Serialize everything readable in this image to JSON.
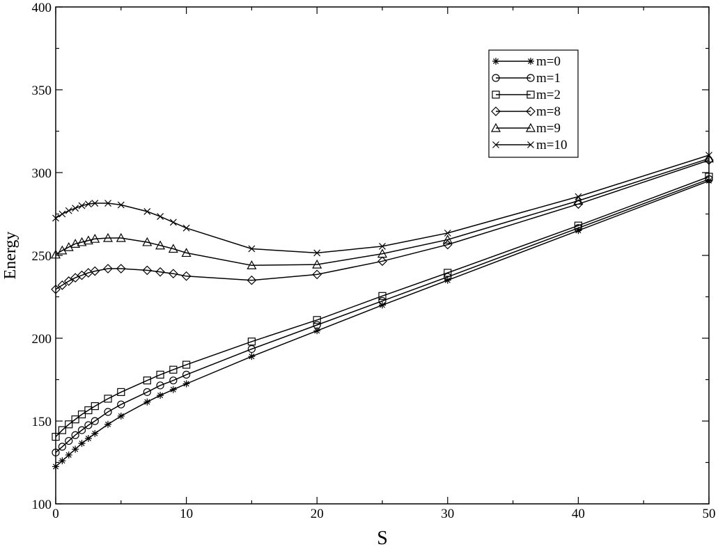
{
  "chart_data": {
    "type": "line",
    "title": "",
    "xlabel": "S",
    "ylabel": "Energy",
    "xlim": [
      0,
      50
    ],
    "ylim": [
      100,
      400
    ],
    "x_ticks": [
      0,
      10,
      20,
      30,
      40,
      50
    ],
    "y_ticks": [
      100,
      150,
      200,
      250,
      300,
      350,
      400
    ],
    "x_tick_labels": [
      "0",
      "10",
      "20",
      "30",
      "40",
      "50"
    ],
    "y_tick_labels": [
      "100",
      "150",
      "200",
      "250",
      "300",
      "350",
      "400"
    ],
    "grid": false,
    "legend_position": "top-right",
    "series": [
      {
        "name": "m=0",
        "marker": "star",
        "x": [
          0,
          0.5,
          1,
          1.5,
          2,
          2.5,
          3,
          4,
          5,
          7,
          8,
          9,
          10,
          15,
          20,
          25,
          30,
          40,
          50
        ],
        "y": [
          122.5,
          126,
          129.5,
          133,
          136.5,
          139.5,
          142.5,
          148,
          153,
          161.5,
          165.5,
          169,
          172.5,
          189,
          204.5,
          220,
          235,
          265,
          295
        ]
      },
      {
        "name": "m=1",
        "marker": "circle",
        "x": [
          0,
          0.5,
          1,
          1.5,
          2,
          2.5,
          3,
          4,
          5,
          7,
          8,
          9,
          10,
          15,
          20,
          25,
          30,
          40,
          50
        ],
        "y": [
          131,
          134.5,
          138,
          141.5,
          144.5,
          147.5,
          150,
          155.5,
          160,
          167.5,
          171.5,
          174.5,
          178,
          193.5,
          208,
          222.5,
          237,
          266.5,
          296
        ]
      },
      {
        "name": "m=2",
        "marker": "square",
        "x": [
          0,
          0.5,
          1,
          1.5,
          2,
          2.5,
          3,
          4,
          5,
          7,
          8,
          9,
          10,
          15,
          20,
          25,
          30,
          40,
          50
        ],
        "y": [
          140.5,
          144.5,
          148,
          151,
          154,
          156.5,
          159,
          163.5,
          167.5,
          174.5,
          178,
          181,
          184,
          198,
          211,
          225.5,
          239.5,
          268,
          297.5
        ]
      },
      {
        "name": "m=8",
        "marker": "diamond",
        "x": [
          0,
          0.5,
          1,
          1.5,
          2,
          2.5,
          3,
          4,
          5,
          7,
          8,
          9,
          10,
          15,
          20,
          25,
          30,
          40,
          50
        ],
        "y": [
          229.5,
          232,
          234.5,
          236.5,
          238,
          239.5,
          240.5,
          242,
          242,
          241,
          240,
          239,
          237.5,
          235,
          238.5,
          246.5,
          256.5,
          281,
          307.5
        ]
      },
      {
        "name": "m=9",
        "marker": "triangle",
        "x": [
          0,
          0.5,
          1,
          1.5,
          2,
          2.5,
          3,
          4,
          5,
          7,
          8,
          9,
          10,
          15,
          20,
          25,
          30,
          40,
          50
        ],
        "y": [
          250.5,
          253,
          255,
          257,
          258,
          259,
          260,
          260.5,
          260.5,
          258,
          256,
          254,
          251.5,
          244,
          244.5,
          251,
          259.5,
          283,
          308.5
        ]
      },
      {
        "name": "m=10",
        "marker": "cross",
        "x": [
          0,
          0.5,
          1,
          1.5,
          2,
          2.5,
          3,
          4,
          5,
          7,
          8,
          9,
          10,
          15,
          20,
          25,
          30,
          40,
          50
        ],
        "y": [
          272.5,
          275,
          277,
          278.5,
          280,
          281,
          281.5,
          281.5,
          280.5,
          276.5,
          273.5,
          270,
          266.5,
          254,
          251.5,
          255.5,
          263.5,
          285.5,
          310.5
        ]
      }
    ]
  }
}
